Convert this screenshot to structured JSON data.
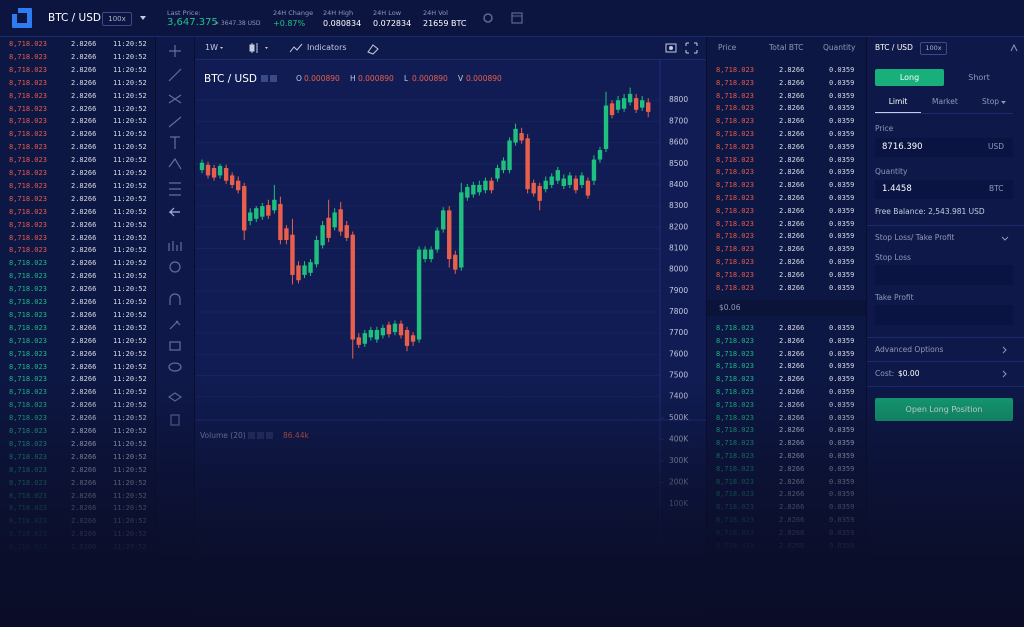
{
  "header": {
    "pair": "BTC / USD",
    "leverage": "100x",
    "last_price_label": "Last Price:",
    "last_price": "3,647.375",
    "last_price_usd": "≈ 3647.38 USD",
    "stats": [
      {
        "label": "24H Change",
        "value": "+0.87%"
      },
      {
        "label": "24H High",
        "value": "0.080834"
      },
      {
        "label": "24H Low",
        "value": "0.072834"
      },
      {
        "label": "24H Vol",
        "value": "21659 BTC"
      }
    ]
  },
  "trades": {
    "groups": [
      {
        "color": "#e8594a",
        "rows": [
          [
            "8,718.023",
            "2.8266",
            "11:20:52"
          ],
          [
            "8,718.023",
            "2.8266",
            "11:20:52"
          ],
          [
            "8,718.023",
            "2.8266",
            "11:20:52"
          ],
          [
            "8,718.023",
            "2.8266",
            "11:20:52"
          ],
          [
            "8,718.023",
            "2.8266",
            "11:20:52"
          ],
          [
            "8,718.023",
            "2.8266",
            "11:20:52"
          ],
          [
            "8,718.023",
            "2.8266",
            "11:20:52"
          ],
          [
            "8,718.023",
            "2.8266",
            "11:20:52"
          ],
          [
            "8,718.023",
            "2.8266",
            "11:20:52"
          ],
          [
            "8,718.023",
            "2.8266",
            "11:20:52"
          ],
          [
            "8,718.023",
            "2.8266",
            "11:20:52"
          ],
          [
            "8,718.023",
            "2.8266",
            "11:20:52"
          ],
          [
            "8,718.023",
            "2.8266",
            "11:20:52"
          ],
          [
            "8,718.023",
            "2.8266",
            "11:20:52"
          ],
          [
            "8,718.023",
            "2.8266",
            "11:20:52"
          ],
          [
            "8,718.023",
            "2.8266",
            "11:20:52"
          ],
          [
            "8,718.023",
            "2.8266",
            "11:20:52"
          ]
        ]
      },
      {
        "color": "#1db88a",
        "rows": [
          [
            "8,718.023",
            "2.8266",
            "11:20:52"
          ],
          [
            "8,718.023",
            "2.8266",
            "11:20:52"
          ],
          [
            "8,718.023",
            "2.8266",
            "11:20:52"
          ],
          [
            "8,718.023",
            "2.8266",
            "11:20:52"
          ],
          [
            "8,718.023",
            "2.8266",
            "11:20:52"
          ],
          [
            "8,718.023",
            "2.8266",
            "11:20:52"
          ],
          [
            "8,718.023",
            "2.8266",
            "11:20:52"
          ],
          [
            "8,718.023",
            "2.8266",
            "11:20:52"
          ],
          [
            "8,718.023",
            "2.8266",
            "11:20:52"
          ],
          [
            "8,718.023",
            "2.8266",
            "11:20:52"
          ],
          [
            "8,718.023",
            "2.8266",
            "11:20:52"
          ],
          [
            "8,718.023",
            "2.8266",
            "11:20:52"
          ],
          [
            "8,718.023",
            "2.8266",
            "11:20:52"
          ],
          [
            "8,718.023",
            "2.8266",
            "11:20:52"
          ],
          [
            "8,718.023",
            "2.8266",
            "11:20:52"
          ],
          [
            "8,718.023",
            "2.8266",
            "11:20:52"
          ],
          [
            "8,718.023",
            "2.8266",
            "11:20:52"
          ],
          [
            "8,718.023",
            "2.8266",
            "11:20:52"
          ],
          [
            "8,718.023",
            "2.8266",
            "11:20:52"
          ],
          [
            "8,718.023",
            "2.8266",
            "11:20:52"
          ],
          [
            "8,718.023",
            "2.8266",
            "11:20:52"
          ],
          [
            "8,718.023",
            "2.8266",
            "11:20:52"
          ],
          [
            "8,718.023",
            "2.8266",
            "11:20:52"
          ]
        ]
      }
    ]
  },
  "toolbar": {
    "interval": "1W",
    "indicators": "Indicators"
  },
  "chart_data": {
    "type": "candlestick",
    "title": "BTC / USD",
    "ohlc_legend": [
      {
        "label": "O",
        "value": "0.000890"
      },
      {
        "label": "H",
        "value": "0.000890"
      },
      {
        "label": "L",
        "value": "0.000890"
      },
      {
        "label": "V",
        "value": "0.000890"
      }
    ],
    "up_color": "#1fbf7f",
    "down_color": "#e8604c",
    "ylim": [
      7290,
      8990
    ],
    "yticks": [
      7400,
      7500,
      7600,
      7700,
      7800,
      7900,
      8000,
      8100,
      8200,
      8300,
      8400,
      8500,
      8600,
      8700,
      8800
    ],
    "grid": true,
    "candles": [
      [
        8470,
        8520,
        8455,
        8505
      ],
      [
        8495,
        8510,
        8430,
        8445
      ],
      [
        8480,
        8495,
        8420,
        8435
      ],
      [
        8445,
        8500,
        8430,
        8490
      ],
      [
        8480,
        8495,
        8405,
        8420
      ],
      [
        8445,
        8460,
        8385,
        8400
      ],
      [
        8420,
        8440,
        8360,
        8375
      ],
      [
        8395,
        8410,
        8140,
        8185
      ],
      [
        8230,
        8290,
        8210,
        8270
      ],
      [
        8240,
        8300,
        8225,
        8290
      ],
      [
        8250,
        8315,
        8235,
        8300
      ],
      [
        8305,
        8330,
        8240,
        8255
      ],
      [
        8280,
        8400,
        8265,
        8330
      ],
      [
        8310,
        8345,
        8120,
        8140
      ],
      [
        8195,
        8210,
        8120,
        8140
      ],
      [
        8165,
        8240,
        7930,
        7975
      ],
      [
        8020,
        8040,
        7935,
        7950
      ],
      [
        7975,
        8040,
        7960,
        8020
      ],
      [
        7985,
        8050,
        7970,
        8035
      ],
      [
        8025,
        8160,
        8010,
        8140
      ],
      [
        8115,
        8230,
        8100,
        8210
      ],
      [
        8245,
        8330,
        8130,
        8150
      ],
      [
        8200,
        8290,
        8185,
        8270
      ],
      [
        8285,
        8320,
        8160,
        8180
      ],
      [
        8210,
        8230,
        8135,
        8150
      ],
      [
        8165,
        8180,
        7580,
        7670
      ],
      [
        7680,
        7700,
        7630,
        7645
      ],
      [
        7650,
        7715,
        7635,
        7700
      ],
      [
        7680,
        7730,
        7665,
        7715
      ],
      [
        7670,
        7730,
        7655,
        7715
      ],
      [
        7690,
        7740,
        7675,
        7725
      ],
      [
        7740,
        7755,
        7680,
        7695
      ],
      [
        7705,
        7760,
        7690,
        7745
      ],
      [
        7745,
        7760,
        7675,
        7690
      ],
      [
        7715,
        7730,
        7615,
        7640
      ],
      [
        7690,
        7705,
        7640,
        7660
      ],
      [
        7670,
        8110,
        7655,
        8095
      ],
      [
        8050,
        8110,
        8035,
        8095
      ],
      [
        8050,
        8110,
        8035,
        8095
      ],
      [
        8095,
        8200,
        8080,
        8185
      ],
      [
        8190,
        8295,
        8175,
        8280
      ],
      [
        8280,
        8300,
        8010,
        8050
      ],
      [
        8070,
        8090,
        7980,
        8000
      ],
      [
        8010,
        8410,
        7995,
        8365
      ],
      [
        8340,
        8405,
        8325,
        8390
      ],
      [
        8355,
        8415,
        8340,
        8400
      ],
      [
        8365,
        8420,
        8350,
        8400
      ],
      [
        8375,
        8435,
        8360,
        8420
      ],
      [
        8420,
        8435,
        8360,
        8375
      ],
      [
        8430,
        8495,
        8415,
        8480
      ],
      [
        8470,
        8530,
        8455,
        8515
      ],
      [
        8470,
        8625,
        8455,
        8610
      ],
      [
        8600,
        8690,
        8585,
        8665
      ],
      [
        8645,
        8670,
        8595,
        8610
      ],
      [
        8620,
        8640,
        8360,
        8380
      ],
      [
        8410,
        8425,
        8345,
        8360
      ],
      [
        8395,
        8410,
        8280,
        8325
      ],
      [
        8380,
        8440,
        8365,
        8420
      ],
      [
        8400,
        8455,
        8385,
        8440
      ],
      [
        8420,
        8485,
        8405,
        8470
      ],
      [
        8395,
        8450,
        8380,
        8430
      ],
      [
        8400,
        8460,
        8385,
        8445
      ],
      [
        8430,
        8445,
        8360,
        8375
      ],
      [
        8400,
        8460,
        8385,
        8445
      ],
      [
        8420,
        8435,
        8335,
        8350
      ],
      [
        8420,
        8540,
        8400,
        8520
      ],
      [
        8520,
        8580,
        8505,
        8565
      ],
      [
        8570,
        8840,
        8555,
        8775
      ],
      [
        8785,
        8800,
        8715,
        8730
      ],
      [
        8755,
        8820,
        8740,
        8800
      ],
      [
        8760,
        8830,
        8745,
        8810
      ],
      [
        8790,
        8860,
        8775,
        8830
      ],
      [
        8810,
        8830,
        8740,
        8755
      ],
      [
        8765,
        8820,
        8750,
        8800
      ],
      [
        8790,
        8810,
        8720,
        8745
      ]
    ],
    "volume": {
      "label": "Volume (20)",
      "value": "86.44k",
      "ylim": [
        0,
        520000
      ],
      "yticks": [
        {
          "value": 100000,
          "label": "100K"
        },
        {
          "value": 200000,
          "label": "200K"
        },
        {
          "value": 300000,
          "label": "300K"
        },
        {
          "value": 400000,
          "label": "400K"
        },
        {
          "value": 500000,
          "label": "500K"
        }
      ]
    }
  },
  "order_book": {
    "headers": [
      "Price",
      "Total BTC",
      "Quantity"
    ],
    "asks": {
      "color": "#e8594a",
      "rows": [
        [
          "8,718.023",
          "2.8266",
          "0.0359"
        ],
        [
          "8,718.023",
          "2.8266",
          "0.0359"
        ],
        [
          "8,718.023",
          "2.8266",
          "0.0359"
        ],
        [
          "8,718.023",
          "2.8266",
          "0.0359"
        ],
        [
          "8,718.023",
          "2.8266",
          "0.0359"
        ],
        [
          "8,718.023",
          "2.8266",
          "0.0359"
        ],
        [
          "8,718.023",
          "2.8266",
          "0.0359"
        ],
        [
          "8,718.023",
          "2.8266",
          "0.0359"
        ],
        [
          "8,718.023",
          "2.8266",
          "0.0359"
        ],
        [
          "8,718.023",
          "2.8266",
          "0.0359"
        ],
        [
          "8,718.023",
          "2.8266",
          "0.0359"
        ],
        [
          "8,718.023",
          "2.8266",
          "0.0359"
        ],
        [
          "8,718.023",
          "2.8266",
          "0.0359"
        ],
        [
          "8,718.023",
          "2.8266",
          "0.0359"
        ],
        [
          "8,718.023",
          "2.8266",
          "0.0359"
        ],
        [
          "8,718.023",
          "2.8266",
          "0.0359"
        ],
        [
          "8,718.023",
          "2.8266",
          "0.0359"
        ],
        [
          "8,718.023",
          "2.8266",
          "0.0359"
        ]
      ]
    },
    "spread": "$0.06",
    "bids": {
      "color": "#1db88a",
      "rows": [
        [
          "8,718.023",
          "2.8266",
          "0.0359"
        ],
        [
          "8,718.023",
          "2.8266",
          "0.0359"
        ],
        [
          "8,718.023",
          "2.8266",
          "0.0359"
        ],
        [
          "8,718.023",
          "2.8266",
          "0.0359"
        ],
        [
          "8,718.023",
          "2.8266",
          "0.0359"
        ],
        [
          "8,718.023",
          "2.8266",
          "0.0359"
        ],
        [
          "8,718.023",
          "2.8266",
          "0.0359"
        ],
        [
          "8,718.023",
          "2.8266",
          "0.0359"
        ],
        [
          "8,718.023",
          "2.8266",
          "0.0359"
        ],
        [
          "8,718.023",
          "2.8266",
          "0.0359"
        ],
        [
          "8,718.023",
          "2.8266",
          "0.0359"
        ],
        [
          "8,718.023",
          "2.8266",
          "0.0359"
        ],
        [
          "8,718.023",
          "2.8266",
          "0.0359"
        ],
        [
          "8,718.023",
          "2.8266",
          "0.0359"
        ],
        [
          "8,718.023",
          "2.8266",
          "0.0359"
        ],
        [
          "8,718.023",
          "2.8266",
          "0.0359"
        ],
        [
          "8,718.023",
          "2.8266",
          "0.0359"
        ],
        [
          "8,718.023",
          "2.8266",
          "0.0359"
        ]
      ]
    }
  },
  "order_form": {
    "pair": "BTC / USD",
    "leverage": "100x",
    "long": "Long",
    "short": "Short",
    "tabs": [
      "Limit",
      "Market",
      "Stop"
    ],
    "price_label": "Price",
    "price": "8716.390",
    "price_unit": "USD",
    "quantity_label": "Quantity",
    "quantity": "1.4458",
    "quantity_unit": "BTC",
    "free_balance": "Free Balance: 2,543.981 USD",
    "sl_tp": "Stop Loss/ Take Profit",
    "stop_loss": "Stop Loss",
    "take_profit": "Take Profit",
    "advanced": "Advanced Options",
    "cost_label": "Cost:",
    "cost": "$0.00",
    "submit": "Open Long Position"
  }
}
